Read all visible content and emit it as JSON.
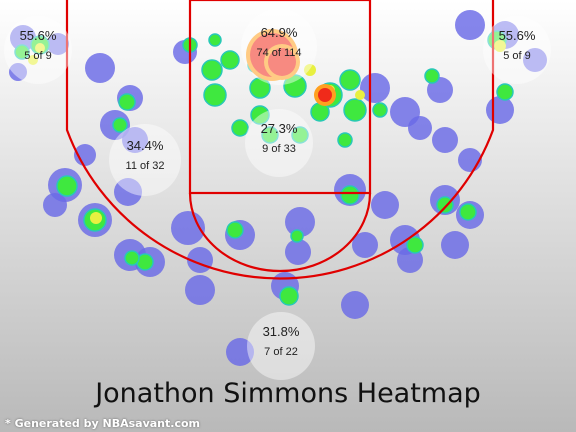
{
  "chart_data": {
    "type": "heatmap",
    "title": "Jonathon Simmons Heatmap",
    "credit": "* Generated by NBAsavant.com",
    "zones": [
      {
        "id": "left-corner-three",
        "pct": "55.6%",
        "count": "5 of 9"
      },
      {
        "id": "right-corner-three",
        "pct": "55.6%",
        "count": "5 of 9"
      },
      {
        "id": "restricted-area",
        "pct": "64.9%",
        "count": "74 of 114"
      },
      {
        "id": "paint",
        "pct": "27.3%",
        "count": "9 of 33"
      },
      {
        "id": "left-wing-midrange",
        "pct": "34.4%",
        "count": "11 of 32"
      },
      {
        "id": "top-of-key-three",
        "pct": "31.8%",
        "count": "7 of 22"
      }
    ]
  }
}
